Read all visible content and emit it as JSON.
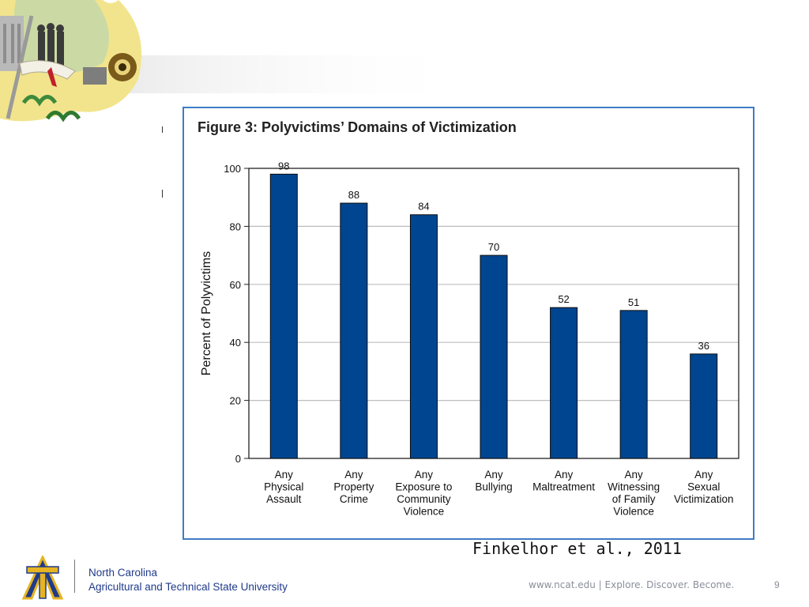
{
  "chart_data": {
    "type": "bar",
    "title": "Figure 3: Polyvictims’ Domains of Victimization",
    "ylabel": "Percent of Polyvictims",
    "xlabel": "",
    "ylim": [
      0,
      100
    ],
    "yticks": [
      0,
      20,
      40,
      60,
      80,
      100
    ],
    "grid": true,
    "categories": [
      [
        "Any",
        "Physical",
        "Assault"
      ],
      [
        "Any",
        "Property",
        "Crime"
      ],
      [
        "Any",
        "Exposure to",
        "Community",
        "Violence"
      ],
      [
        "Any",
        "Bullying"
      ],
      [
        "Any",
        "Maltreatment"
      ],
      [
        "Any",
        "Witnessing",
        "of Family",
        "Violence"
      ],
      [
        "Any",
        "Sexual",
        "Victimization"
      ]
    ],
    "values": [
      98,
      88,
      84,
      70,
      52,
      51,
      36
    ],
    "bar_color": "#00458f"
  },
  "citation": "Finkelhor et al., 2011",
  "footer": {
    "institution_line1": "North Carolina",
    "institution_line2": "Agricultural and Technical State University",
    "tagline": "www.ncat.edu | Explore. Discover. Become.",
    "page_number": "9"
  }
}
